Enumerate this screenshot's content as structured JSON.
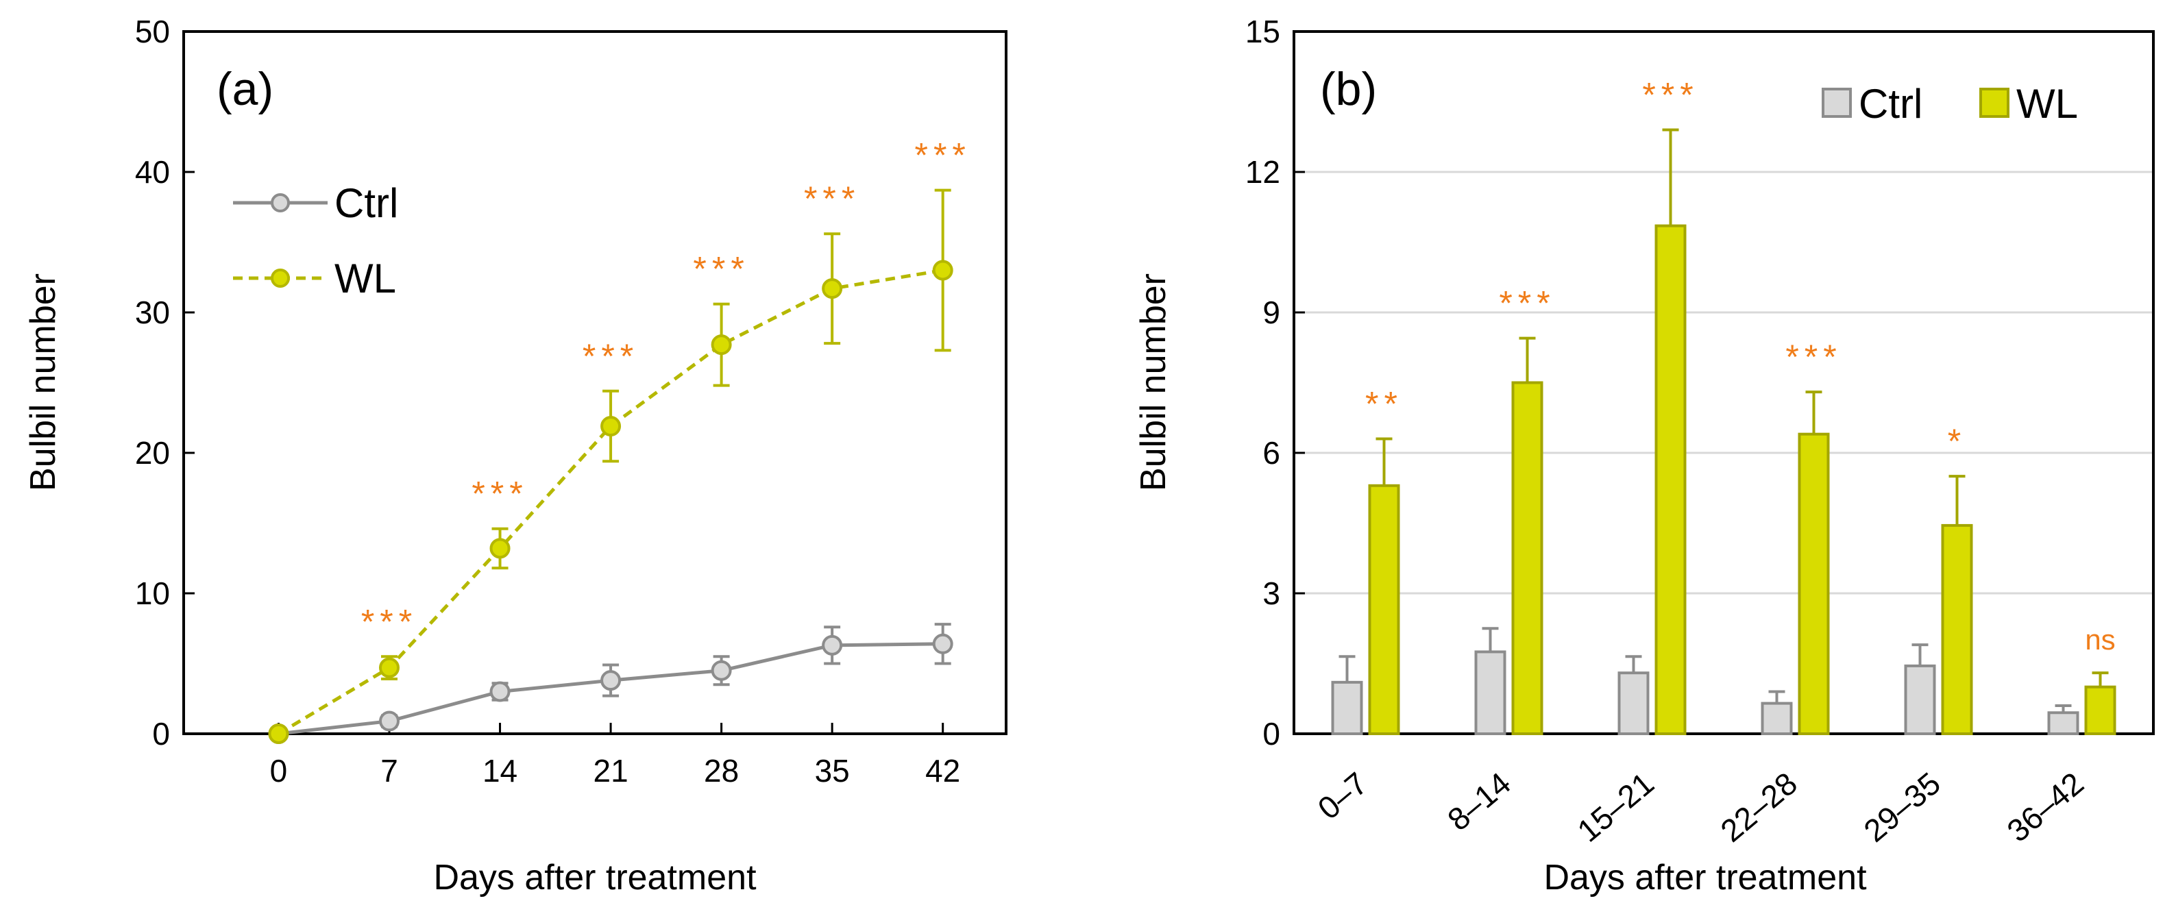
{
  "chart_data": [
    {
      "type": "line",
      "panel_label": "(a)",
      "xlabel": "Days after treatment",
      "ylabel": "Bulbil number",
      "x": [
        0,
        7,
        14,
        21,
        28,
        35,
        42
      ],
      "xlim": [
        -6,
        46
      ],
      "ylim": [
        0,
        50
      ],
      "yticks": [
        0,
        10,
        20,
        30,
        40,
        50
      ],
      "grid": false,
      "legend": "top-left",
      "series": [
        {
          "name": "Ctrl",
          "style": "solid",
          "color": "#8c8c8c",
          "fill": "#d9d9d9",
          "values": [
            0,
            0.9,
            3.0,
            3.8,
            4.5,
            6.3,
            6.4
          ],
          "errors": [
            0,
            0.4,
            0.6,
            1.1,
            1.0,
            1.3,
            1.4
          ]
        },
        {
          "name": "WL",
          "style": "dashed",
          "color": "#b5b800",
          "fill": "#d8dc00",
          "values": [
            0,
            4.7,
            13.2,
            21.9,
            27.7,
            31.7,
            33.0
          ],
          "errors": [
            0,
            0.8,
            1.4,
            2.5,
            2.9,
            3.9,
            5.7
          ]
        }
      ],
      "annotations": [
        "",
        "***",
        "***",
        "***",
        "***",
        "***",
        "***"
      ],
      "annotation_color": "#f07d1a"
    },
    {
      "type": "bar",
      "panel_label": "(b)",
      "xlabel": "Days after treatment",
      "ylabel": "Bulbil number",
      "categories": [
        "0–7",
        "8–14",
        "15–21",
        "22–28",
        "29–35",
        "36–42"
      ],
      "ylim": [
        0,
        15
      ],
      "yticks": [
        0,
        3,
        6,
        9,
        12,
        15
      ],
      "grid": true,
      "legend": "top-right",
      "series": [
        {
          "name": "Ctrl",
          "color": "#8c8c8c",
          "fill": "#d9d9d9",
          "values": [
            1.1,
            1.75,
            1.3,
            0.65,
            1.45,
            0.45
          ],
          "errors": [
            0.55,
            0.5,
            0.35,
            0.25,
            0.45,
            0.15
          ]
        },
        {
          "name": "WL",
          "color": "#a3a600",
          "fill": "#d8dc00",
          "values": [
            5.3,
            7.5,
            10.85,
            6.4,
            4.45,
            1.0
          ],
          "errors": [
            1.0,
            0.95,
            2.05,
            0.9,
            1.05,
            0.3
          ]
        }
      ],
      "annotations": [
        "**",
        "***",
        "***",
        "***",
        "*",
        "ns"
      ],
      "annotation_color": "#f07d1a"
    }
  ]
}
